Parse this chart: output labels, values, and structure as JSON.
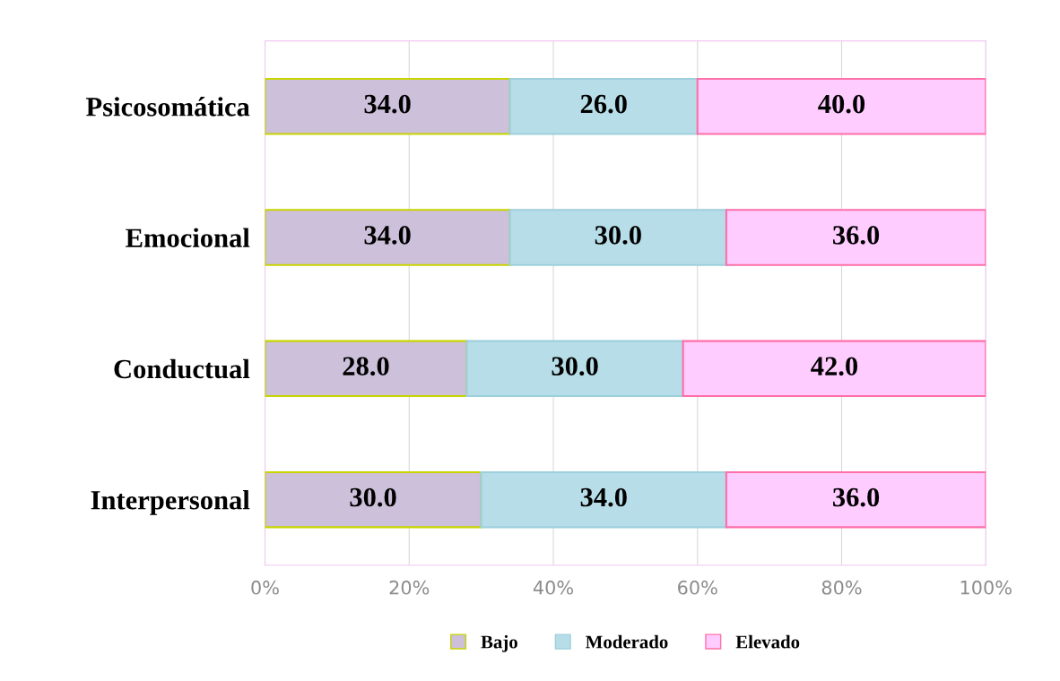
{
  "chart_data": {
    "type": "bar",
    "orientation": "horizontal",
    "stacked": true,
    "categories": [
      "Psicosomática",
      "Emocional",
      "Conductual",
      "Interpersonal"
    ],
    "series": [
      {
        "name": "Bajo",
        "color": "#ccc0da",
        "values": [
          34,
          34,
          28,
          30
        ],
        "value_labels": [
          "34.0",
          "34.0",
          "28.0",
          "30.0"
        ]
      },
      {
        "name": "Moderado",
        "color": "#b7dee8",
        "values": [
          26,
          30,
          30,
          34
        ],
        "value_labels": [
          "26.0",
          "30.0",
          "30.0",
          "34.0"
        ]
      },
      {
        "name": "Elevado",
        "color": "#ffccff",
        "values": [
          40,
          36,
          42,
          36
        ],
        "value_labels": [
          "40.0",
          "36.0",
          "42.0",
          "36.0"
        ]
      }
    ],
    "xlim": [
      0,
      100
    ],
    "xticks": [
      {
        "value": 0,
        "label": "0%"
      },
      {
        "value": 20,
        "label": "20%"
      },
      {
        "value": 40,
        "label": "40%"
      },
      {
        "value": 60,
        "label": "60%"
      },
      {
        "value": 80,
        "label": "80%"
      },
      {
        "value": 100,
        "label": "100%"
      }
    ],
    "grid": "x",
    "legend": "bottom"
  }
}
